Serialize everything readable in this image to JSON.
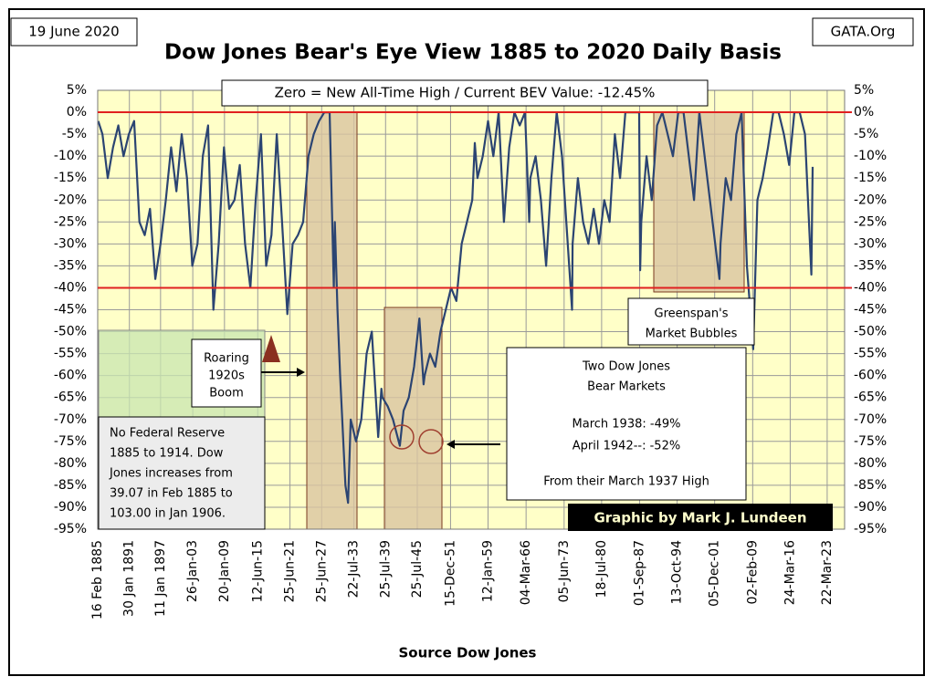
{
  "chart_data": {
    "type": "line",
    "title": "Dow Jones Bear's Eye View 1885 to 2020 Daily Basis",
    "date_label": "19 June 2020",
    "source_site": "GATA.Org",
    "subtitle": "Zero = New All-Time High / Current BEV Value: -12.45%",
    "x_label": "Source Dow Jones",
    "credit": "Graphic by Mark J. Lundeen",
    "annotations": [
      {
        "name": "roaring",
        "lines": [
          "Roaring",
          "1920s",
          "Boom"
        ]
      },
      {
        "name": "fed",
        "lines": [
          "No Federal Reserve",
          "1885 to 1914.  Dow",
          "Jones increases from",
          "39.07  in Feb 1885  to",
          "103.00  in Jan 1906."
        ]
      },
      {
        "name": "bear",
        "lines": [
          "Two Dow Jones",
          "Bear Markets",
          "March 1938: -49%",
          "April 1942--: -52%",
          "From their March 1937 High"
        ]
      },
      {
        "name": "greenspan",
        "lines": [
          "Greenspan's",
          "Market Bubbles"
        ]
      }
    ],
    "xlim": [
      1885.1,
      2026.5
    ],
    "xticks": [
      {
        "value": 1885.1,
        "label": "16 Feb 1885"
      },
      {
        "value": 1891.1,
        "label": "30 Jan 1891"
      },
      {
        "value": 1897.0,
        "label": "11 Jan 1897"
      },
      {
        "value": 1903.1,
        "label": "26-Jan-03"
      },
      {
        "value": 1909.1,
        "label": "20-Jan-09"
      },
      {
        "value": 1915.4,
        "label": "12-Jun-15"
      },
      {
        "value": 1921.5,
        "label": "25-Jun-21"
      },
      {
        "value": 1927.5,
        "label": "25-Jun-27"
      },
      {
        "value": 1933.6,
        "label": "22-Jul-33"
      },
      {
        "value": 1939.6,
        "label": "25-Jul-39"
      },
      {
        "value": 1945.6,
        "label": "25-Jul-45"
      },
      {
        "value": 1951.9,
        "label": "15-Dec-51"
      },
      {
        "value": 1959.0,
        "label": "12-Jan-59"
      },
      {
        "value": 1966.2,
        "label": "04-Mar-66"
      },
      {
        "value": 1973.4,
        "label": "05-Jun-73"
      },
      {
        "value": 1980.5,
        "label": "18-Jul-80"
      },
      {
        "value": 1987.7,
        "label": "01-Sep-87"
      },
      {
        "value": 1994.8,
        "label": "13-Oct-94"
      },
      {
        "value": 2001.9,
        "label": "05-Dec-01"
      },
      {
        "value": 2009.1,
        "label": "02-Feb-09"
      },
      {
        "value": 2016.2,
        "label": "24-Mar-16"
      },
      {
        "value": 2023.2,
        "label": "22-Mar-23"
      }
    ],
    "ylim": [
      -95,
      5
    ],
    "yticks": [
      {
        "value": 5,
        "label": "5%"
      },
      {
        "value": 0,
        "label": "0%"
      },
      {
        "value": -5,
        "label": "-5%"
      },
      {
        "value": -10,
        "label": "-10%"
      },
      {
        "value": -15,
        "label": "-15%"
      },
      {
        "value": -20,
        "label": "-20%"
      },
      {
        "value": -25,
        "label": "-25%"
      },
      {
        "value": -30,
        "label": "-30%"
      },
      {
        "value": -35,
        "label": "-35%"
      },
      {
        "value": -40,
        "label": "-40%"
      },
      {
        "value": -45,
        "label": "-45%"
      },
      {
        "value": -50,
        "label": "-50%"
      },
      {
        "value": -55,
        "label": "-55%"
      },
      {
        "value": -60,
        "label": "-60%"
      },
      {
        "value": -65,
        "label": "-65%"
      },
      {
        "value": -70,
        "label": "-70%"
      },
      {
        "value": -75,
        "label": "-75%"
      },
      {
        "value": -80,
        "label": "-80%"
      },
      {
        "value": -85,
        "label": "-85%"
      },
      {
        "value": -90,
        "label": "-90%"
      },
      {
        "value": -95,
        "label": "-95%"
      }
    ],
    "grid": true,
    "hlines": [
      0,
      -40
    ],
    "hline_color": "#e02020",
    "x": [
      1885.2,
      1886,
      1887,
      1888,
      1889,
      1890,
      1891,
      1892,
      1893,
      1894,
      1895,
      1896,
      1897,
      1898,
      1899,
      1900,
      1901,
      1902,
      1903,
      1904,
      1905,
      1906,
      1907,
      1908,
      1909,
      1910,
      1911,
      1912,
      1913,
      1914,
      1915,
      1916,
      1917,
      1918,
      1919,
      1920,
      1921,
      1922,
      1923,
      1924,
      1925,
      1926,
      1927,
      1928,
      1929,
      1929.8,
      1930,
      1930.5,
      1931,
      1932,
      1932.5,
      1933,
      1934,
      1935,
      1936,
      1937,
      1938.2,
      1938.8,
      1939,
      1940,
      1941,
      1942.3,
      1943,
      1944,
      1945,
      1946,
      1946.8,
      1947,
      1948,
      1949,
      1950,
      1951,
      1952,
      1953,
      1954,
      1955,
      1956,
      1956.5,
      1957,
      1958,
      1959,
      1960,
      1961,
      1962,
      1963,
      1964,
      1965,
      1966,
      1966.8,
      1967,
      1968,
      1969,
      1970,
      1971,
      1972,
      1973,
      1974.9,
      1975,
      1976,
      1977,
      1978,
      1979,
      1980,
      1981,
      1982,
      1983,
      1984,
      1985,
      1986,
      1987.6,
      1987.8,
      1988,
      1989,
      1990,
      1991,
      1992,
      1993,
      1994,
      1995,
      1996,
      1998,
      1999,
      2000,
      2001,
      2002.8,
      2003,
      2004,
      2005,
      2006,
      2007,
      2008,
      2009.2,
      2010,
      2011,
      2012,
      2013,
      2014,
      2015,
      2016,
      2017,
      2018,
      2019,
      2020.2,
      2020.45
    ],
    "series": [
      {
        "name": "BEV",
        "color": "#2b4472",
        "values": [
          -2,
          -5,
          -15,
          -8,
          -3,
          -10,
          -5,
          -2,
          -25,
          -28,
          -22,
          -38,
          -30,
          -20,
          -8,
          -18,
          -5,
          -15,
          -35,
          -30,
          -10,
          -3,
          -45,
          -30,
          -8,
          -22,
          -20,
          -12,
          -30,
          -40,
          -20,
          -5,
          -35,
          -28,
          -5,
          -25,
          -46,
          -30,
          -28,
          -25,
          -10,
          -5,
          -2,
          0,
          0,
          -40,
          -25,
          -45,
          -60,
          -85,
          -89,
          -70,
          -75,
          -70,
          -55,
          -50,
          -74,
          -63,
          -65,
          -67,
          -70,
          -76,
          -68,
          -65,
          -58,
          -47,
          -62,
          -60,
          -55,
          -58,
          -50,
          -45,
          -40,
          -43,
          -30,
          -25,
          -20,
          -7,
          -15,
          -10,
          -2,
          -10,
          0,
          -25,
          -8,
          0,
          -3,
          0,
          -25,
          -15,
          -10,
          -20,
          -35,
          -15,
          0,
          -10,
          -45,
          -30,
          -15,
          -25,
          -30,
          -22,
          -30,
          -20,
          -25,
          -5,
          -15,
          0,
          0,
          0,
          -36,
          -25,
          -10,
          -20,
          -3,
          0,
          -5,
          -10,
          0,
          0,
          -20,
          0,
          -10,
          -20,
          -38,
          -30,
          -15,
          -20,
          -5,
          0,
          -35,
          -54,
          -20,
          -15,
          -8,
          0,
          0,
          -5,
          -12,
          0,
          0,
          -5,
          -37,
          -12.45
        ]
      }
    ]
  }
}
